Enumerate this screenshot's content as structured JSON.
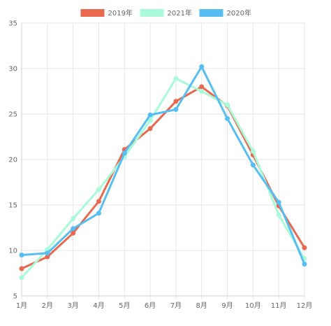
{
  "chart_data": {
    "type": "line",
    "categories": [
      "1月",
      "2月",
      "3月",
      "4月",
      "5月",
      "6月",
      "7月",
      "8月",
      "9月",
      "10月",
      "11月",
      "12月"
    ],
    "series": [
      {
        "name": "2019年",
        "color": "#e8694f",
        "values": [
          8.0,
          9.3,
          11.9,
          15.4,
          21.1,
          23.4,
          26.4,
          28.0,
          25.9,
          20.5,
          14.9,
          10.3
        ]
      },
      {
        "name": "2021年",
        "color": "#a8fad8",
        "values": [
          7.0,
          10.1,
          13.5,
          16.7,
          20.3,
          24.3,
          28.9,
          27.5,
          26.0,
          20.9,
          13.9,
          9.1
        ]
      },
      {
        "name": "2020年",
        "color": "#56bef3",
        "values": [
          9.5,
          9.7,
          12.4,
          14.1,
          20.7,
          24.9,
          25.5,
          30.2,
          24.5,
          19.4,
          15.3,
          8.5
        ]
      }
    ],
    "title": "",
    "xlabel": "",
    "ylabel": "",
    "ylim": [
      5,
      35
    ],
    "yticks": [
      5,
      10,
      15,
      20,
      25,
      30,
      35
    ],
    "grid": true,
    "legend_position": "top-center"
  }
}
